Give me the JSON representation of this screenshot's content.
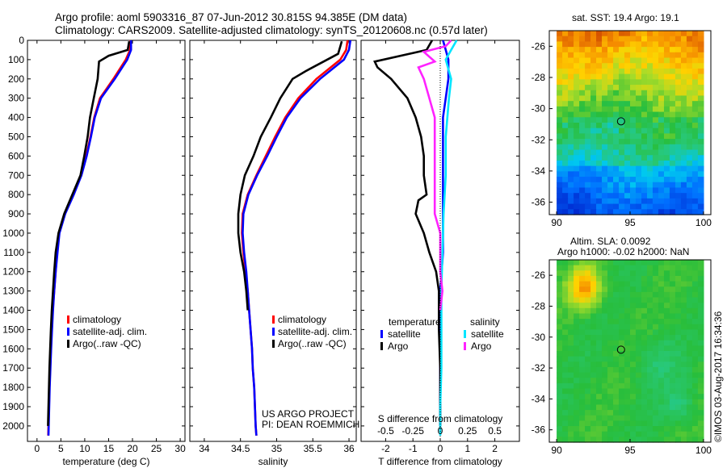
{
  "header": {
    "title_line1": "Argo profile: aoml 5903316_87 07-Jun-2012 30.815S 94.385E (DM data)",
    "title_line2": "Climatology: CARS2009. Satellite-adjusted climatology: synTS_20120608.nc (0.57d later)"
  },
  "colors": {
    "climatology": "#ff0000",
    "satellite": "#0000ff",
    "argo": "#000000",
    "salinity_satellite": "#00e5ff",
    "salinity_argo": "#ff22ff"
  },
  "chart_data": [
    {
      "type": "line",
      "id": "temperature",
      "xlabel": "temperature (deg C)",
      "ylabel": "",
      "xlim": [
        -2,
        31
      ],
      "ylim": [
        2080,
        0
      ],
      "xticks": [
        0,
        5,
        10,
        15,
        20,
        25,
        30
      ],
      "yticks": [
        0,
        100,
        200,
        300,
        400,
        500,
        600,
        700,
        800,
        900,
        1000,
        1100,
        1200,
        1300,
        1400,
        1500,
        1600,
        1700,
        1800,
        1900,
        2000
      ],
      "legend": [
        "climatology",
        "satellite-adj. clim.",
        "Argo(..raw -QC)"
      ],
      "series": [
        {
          "name": "climatology",
          "color": "#ff0000",
          "points": [
            [
              19.6,
              0
            ],
            [
              19.5,
              50
            ],
            [
              18.6,
              100
            ],
            [
              16.0,
              200
            ],
            [
              13.2,
              300
            ],
            [
              12.0,
              400
            ],
            [
              11.2,
              500
            ],
            [
              10.3,
              600
            ],
            [
              9.2,
              700
            ],
            [
              7.6,
              800
            ],
            [
              5.8,
              900
            ],
            [
              4.6,
              1000
            ],
            [
              4.2,
              1100
            ],
            [
              3.9,
              1200
            ],
            [
              3.6,
              1300
            ],
            [
              3.3,
              1400
            ],
            [
              3.1,
              1500
            ],
            [
              2.9,
              1600
            ],
            [
              2.75,
              1700
            ],
            [
              2.6,
              1800
            ],
            [
              2.5,
              1900
            ],
            [
              2.4,
              2000
            ],
            [
              2.35,
              2050
            ]
          ]
        },
        {
          "name": "satellite-adj. clim.",
          "color": "#0000ff",
          "points": [
            [
              19.7,
              0
            ],
            [
              19.7,
              50
            ],
            [
              18.9,
              100
            ],
            [
              16.3,
              200
            ],
            [
              13.4,
              300
            ],
            [
              12.1,
              400
            ],
            [
              11.3,
              500
            ],
            [
              10.4,
              600
            ],
            [
              9.3,
              700
            ],
            [
              7.7,
              800
            ],
            [
              5.9,
              900
            ],
            [
              4.7,
              1000
            ],
            [
              4.3,
              1100
            ],
            [
              3.9,
              1200
            ],
            [
              3.6,
              1300
            ],
            [
              3.35,
              1400
            ],
            [
              3.15,
              1500
            ],
            [
              2.95,
              1600
            ],
            [
              2.8,
              1700
            ],
            [
              2.65,
              1800
            ],
            [
              2.55,
              1900
            ],
            [
              2.45,
              2000
            ],
            [
              2.4,
              2050
            ]
          ]
        },
        {
          "name": "Argo(..raw -QC)",
          "color": "#000000",
          "points": [
            [
              19.3,
              5
            ],
            [
              19.0,
              50
            ],
            [
              15.0,
              80
            ],
            [
              13.0,
              110
            ],
            [
              12.7,
              200
            ],
            [
              11.9,
              300
            ],
            [
              11.1,
              400
            ],
            [
              10.6,
              500
            ],
            [
              9.9,
              600
            ],
            [
              9.1,
              700
            ],
            [
              7.4,
              800
            ],
            [
              5.7,
              900
            ],
            [
              4.5,
              1000
            ],
            [
              3.9,
              1100
            ],
            [
              3.6,
              1200
            ],
            [
              3.35,
              1300
            ],
            [
              3.1,
              1400
            ],
            [
              2.9,
              1500
            ],
            [
              2.75,
              1600
            ],
            [
              2.6,
              1700
            ],
            [
              2.5,
              1800
            ],
            [
              2.4,
              1900
            ],
            [
              2.3,
              2000
            ]
          ]
        }
      ]
    },
    {
      "type": "line",
      "id": "salinity",
      "xlabel": "salinity",
      "xlim": [
        33.8,
        36.1
      ],
      "ylim": [
        2080,
        0
      ],
      "xticks": [
        34,
        34.5,
        35,
        35.5,
        36
      ],
      "xticklabels": [
        "34",
        "34.5",
        "35",
        "35.5",
        "36"
      ],
      "legend": [
        "climatology",
        "satellite-adj. clim.",
        "Argo(..raw -QC)"
      ],
      "annotations": [
        "US ARGO PROJECT",
        "PI: DEAN ROEMMICH"
      ],
      "series": [
        {
          "name": "climatology",
          "color": "#ff0000",
          "points": [
            [
              35.98,
              0
            ],
            [
              35.96,
              50
            ],
            [
              35.88,
              100
            ],
            [
              35.55,
              200
            ],
            [
              35.3,
              300
            ],
            [
              35.12,
              400
            ],
            [
              34.98,
              500
            ],
            [
              34.85,
              600
            ],
            [
              34.72,
              700
            ],
            [
              34.6,
              800
            ],
            [
              34.53,
              900
            ],
            [
              34.52,
              1000
            ],
            [
              34.54,
              1100
            ],
            [
              34.57,
              1200
            ],
            [
              34.6,
              1300
            ],
            [
              34.62,
              1400
            ],
            [
              34.64,
              1500
            ],
            [
              34.66,
              1600
            ],
            [
              34.67,
              1700
            ],
            [
              34.69,
              1800
            ],
            [
              34.7,
              1900
            ],
            [
              34.71,
              2000
            ],
            [
              34.72,
              2050
            ]
          ]
        },
        {
          "name": "satellite-adj. clim.",
          "color": "#0000ff",
          "points": [
            [
              36.02,
              0
            ],
            [
              36.0,
              50
            ],
            [
              35.93,
              100
            ],
            [
              35.6,
              200
            ],
            [
              35.33,
              300
            ],
            [
              35.14,
              400
            ],
            [
              35.0,
              500
            ],
            [
              34.87,
              600
            ],
            [
              34.73,
              700
            ],
            [
              34.61,
              800
            ],
            [
              34.54,
              900
            ],
            [
              34.53,
              1000
            ],
            [
              34.55,
              1100
            ],
            [
              34.58,
              1200
            ],
            [
              34.6,
              1300
            ],
            [
              34.62,
              1400
            ],
            [
              34.64,
              1500
            ],
            [
              34.66,
              1600
            ],
            [
              34.67,
              1700
            ],
            [
              34.69,
              1800
            ],
            [
              34.7,
              1900
            ],
            [
              34.71,
              2000
            ],
            [
              34.72,
              2050
            ]
          ]
        },
        {
          "name": "Argo(..raw -QC)",
          "color": "#000000",
          "points": [
            [
              35.9,
              5
            ],
            [
              35.85,
              70
            ],
            [
              35.4,
              160
            ],
            [
              35.22,
              200
            ],
            [
              35.05,
              300
            ],
            [
              34.92,
              400
            ],
            [
              34.78,
              500
            ],
            [
              34.68,
              600
            ],
            [
              34.56,
              700
            ],
            [
              34.5,
              800
            ],
            [
              34.47,
              900
            ],
            [
              34.47,
              1000
            ],
            [
              34.5,
              1100
            ],
            [
              34.55,
              1200
            ],
            [
              34.58,
              1300
            ],
            [
              34.6,
              1400
            ]
          ]
        }
      ]
    },
    {
      "type": "line",
      "id": "differences",
      "xlabel": "T difference from climatology",
      "xlabel_top": "S difference from climatology",
      "xlim": [
        -2.9,
        2.9
      ],
      "ylim": [
        2080,
        0
      ],
      "xticks": [
        -2,
        -1,
        0,
        1,
        2
      ],
      "s_ticks": [
        -0.5,
        -0.25,
        0,
        0.25,
        0.5
      ],
      "s_ticklabels": [
        "-0.5",
        "-0.25",
        "0",
        "0.25",
        "0.5"
      ],
      "legend_groups": [
        {
          "title": "temperature",
          "items": [
            "satellite",
            "Argo"
          ]
        },
        {
          "title": "salinity",
          "items": [
            "satellite",
            "Argo"
          ]
        }
      ],
      "series": [
        {
          "name": "temperature satellite",
          "color": "#0000ff",
          "points": [
            [
              0.1,
              0
            ],
            [
              0.2,
              50
            ],
            [
              0.3,
              100
            ],
            [
              0.3,
              200
            ],
            [
              0.2,
              300
            ],
            [
              0.1,
              400
            ],
            [
              0.1,
              500
            ],
            [
              0.1,
              600
            ],
            [
              0.1,
              700
            ],
            [
              0.1,
              800
            ],
            [
              0.1,
              900
            ],
            [
              0.1,
              1000
            ],
            [
              0.1,
              1100
            ],
            [
              0.05,
              1200
            ],
            [
              0.0,
              1300
            ],
            [
              0.0,
              1500
            ],
            [
              0.0,
              1700
            ],
            [
              0.0,
              1900
            ],
            [
              0.0,
              2000
            ]
          ]
        },
        {
          "name": "temperature Argo",
          "color": "#000000",
          "points": [
            [
              -0.3,
              0
            ],
            [
              -0.5,
              50
            ],
            [
              -2.4,
              110
            ],
            [
              -2.3,
              140
            ],
            [
              -1.8,
              200
            ],
            [
              -1.2,
              300
            ],
            [
              -0.9,
              400
            ],
            [
              -0.7,
              500
            ],
            [
              -0.6,
              600
            ],
            [
              -0.6,
              700
            ],
            [
              -0.5,
              800
            ],
            [
              -0.8,
              830
            ],
            [
              -0.9,
              900
            ],
            [
              -0.6,
              1000
            ],
            [
              -0.4,
              1100
            ],
            [
              -0.15,
              1200
            ],
            [
              -0.05,
              1300
            ],
            [
              -0.05,
              1500
            ],
            [
              0.0,
              1700
            ],
            [
              0.0,
              1900
            ],
            [
              0.0,
              2000
            ]
          ]
        },
        {
          "name": "salinity satellite",
          "color": "#00e5ff",
          "points": [
            [
              0.15,
              0
            ],
            [
              0.1,
              50
            ],
            [
              0.05,
              100
            ],
            [
              0.1,
              200
            ],
            [
              0.08,
              300
            ],
            [
              0.05,
              500
            ],
            [
              0.05,
              700
            ],
            [
              0.03,
              900
            ],
            [
              0.02,
              1100
            ],
            [
              0.01,
              1300
            ],
            [
              0.01,
              1500
            ],
            [
              0.01,
              1700
            ],
            [
              0.0,
              1900
            ],
            [
              0.0,
              2050
            ]
          ]
        },
        {
          "name": "salinity Argo",
          "color": "#ff22ff",
          "points": [
            [
              0.1,
              0
            ],
            [
              0.05,
              30
            ],
            [
              -0.15,
              60
            ],
            [
              -0.05,
              110
            ],
            [
              -0.2,
              140
            ],
            [
              -0.15,
              200
            ],
            [
              -0.1,
              300
            ],
            [
              -0.05,
              400
            ],
            [
              -0.05,
              500
            ],
            [
              -0.05,
              600
            ],
            [
              -0.05,
              700
            ],
            [
              -0.05,
              800
            ],
            [
              -0.05,
              900
            ],
            [
              0.0,
              1000
            ],
            [
              0.0,
              1100
            ],
            [
              0.0,
              1200
            ],
            [
              0.02,
              1300
            ],
            [
              0.0,
              1400
            ]
          ]
        }
      ]
    },
    {
      "type": "heatmap",
      "id": "sst_map",
      "title": "sat. SST: 19.4  Argo: 19.1",
      "xlim": [
        89.5,
        100.5
      ],
      "ylim": [
        -36.8,
        -25
      ],
      "xticks": [
        90,
        95,
        100
      ],
      "yticks": [
        -26,
        -28,
        -30,
        -32,
        -34,
        -36
      ],
      "marker": {
        "lon": 94.385,
        "lat": -30.815
      }
    },
    {
      "type": "heatmap",
      "id": "sla_map",
      "title_line1": "Altim. SLA: 0.0092",
      "title_line2": "Argo h1000: -0.02 h2000: NaN",
      "xlim": [
        89.5,
        100.5
      ],
      "ylim": [
        -36.8,
        -25
      ],
      "xticks": [
        90,
        95,
        100
      ],
      "yticks": [
        -26,
        -28,
        -30,
        -32,
        -34,
        -36
      ],
      "marker": {
        "lon": 94.385,
        "lat": -30.815
      }
    }
  ],
  "side_label": "©IMOS 03-Aug-2017 16:34:36"
}
